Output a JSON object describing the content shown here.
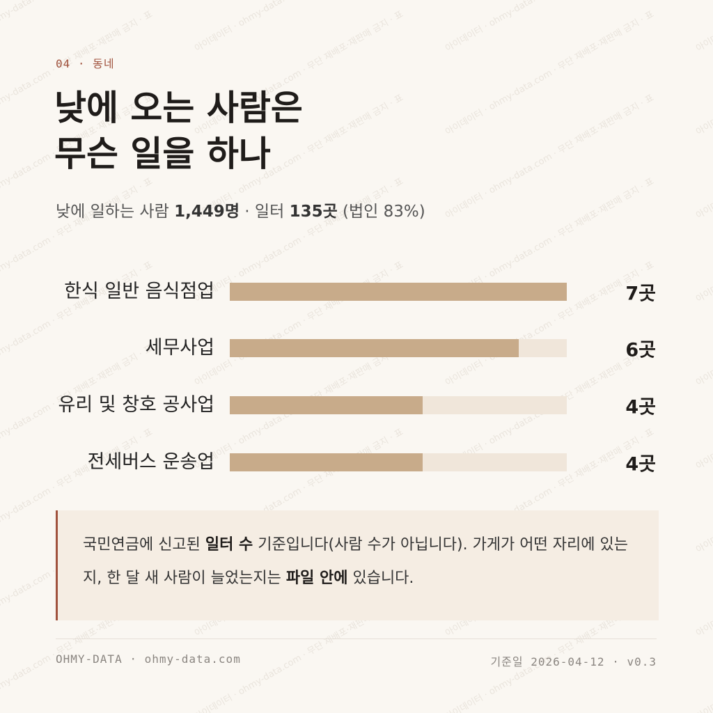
{
  "header": {
    "eyebrow": "04 · 동네",
    "title_lines": [
      "낮에 오는 사람은",
      "무슨 일을 하나"
    ],
    "subtitle": [
      "낮에 일하는 사람 ",
      "1,449명",
      " · 일터 ",
      "135곳",
      " (법인 83%)"
    ]
  },
  "chart_data": {
    "type": "bar",
    "orientation": "horizontal",
    "categories": [
      "한식 일반 음식점업",
      "세무사업",
      "유리 및 창호 공사업",
      "전세버스 운송업"
    ],
    "values": [
      7,
      6,
      4,
      4
    ],
    "value_labels": [
      "7곳",
      "6곳",
      "4곳",
      "4곳"
    ],
    "xlim": [
      0,
      7
    ],
    "color": "#c8ab8a",
    "track_color": "#f0e6da"
  },
  "note": [
    "국민연금에 신고된 ",
    "일터 수",
    " 기준입니다(사람 수가 아닙니다). 가게가 어떤 자리에 있는지, 한 달 새 사람이 늘었는지는 ",
    "파일 안에",
    " 있습니다."
  ],
  "footer": {
    "left": "OHMY-DATA · ohmy-data.com",
    "right": "기준일 2026-04-12 · v0.3"
  },
  "watermark": "아이데이터 · ohmy-data.com · 무단 재배포·재판매 금지 · 표"
}
